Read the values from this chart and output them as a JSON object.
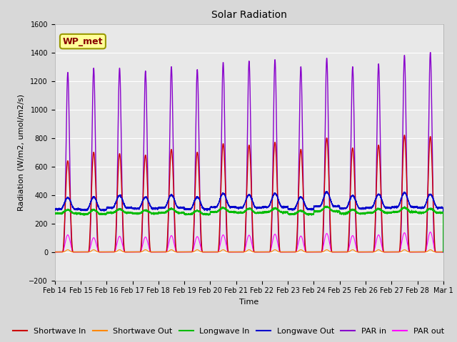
{
  "title": "Solar Radiation",
  "ylabel": "Radiation (W/m2, umol/m2/s)",
  "xlabel": "Time",
  "ylim": [
    -200,
    1600
  ],
  "n_days": 15,
  "xtick_labels": [
    "Feb 14",
    "Feb 15",
    "Feb 16",
    "Feb 17",
    "Feb 18",
    "Feb 19",
    "Feb 20",
    "Feb 21",
    "Feb 22",
    "Feb 23",
    "Feb 24",
    "Feb 25",
    "Feb 26",
    "Feb 27",
    "Feb 28",
    "Mar 1"
  ],
  "series": {
    "shortwave_in": {
      "color": "#cc0000",
      "label": "Shortwave In",
      "lw": 1.0
    },
    "shortwave_out": {
      "color": "#ff8800",
      "label": "Shortwave Out",
      "lw": 0.8
    },
    "longwave_in": {
      "color": "#00bb00",
      "label": "Longwave In",
      "lw": 1.0
    },
    "longwave_out": {
      "color": "#0000cc",
      "label": "Longwave Out",
      "lw": 1.0
    },
    "par_in": {
      "color": "#8800cc",
      "label": "PAR in",
      "lw": 1.0
    },
    "par_out": {
      "color": "#ff00ff",
      "label": "PAR out",
      "lw": 0.8
    }
  },
  "annotation": {
    "text": "WP_met",
    "fontsize": 9,
    "color": "#880000",
    "bg_color": "#ffff99",
    "border_color": "#999900"
  },
  "fig_facecolor": "#d8d8d8",
  "plot_facecolor": "#e8e8e8",
  "title_fontsize": 10,
  "legend_fontsize": 8,
  "tick_labelsize": 7
}
